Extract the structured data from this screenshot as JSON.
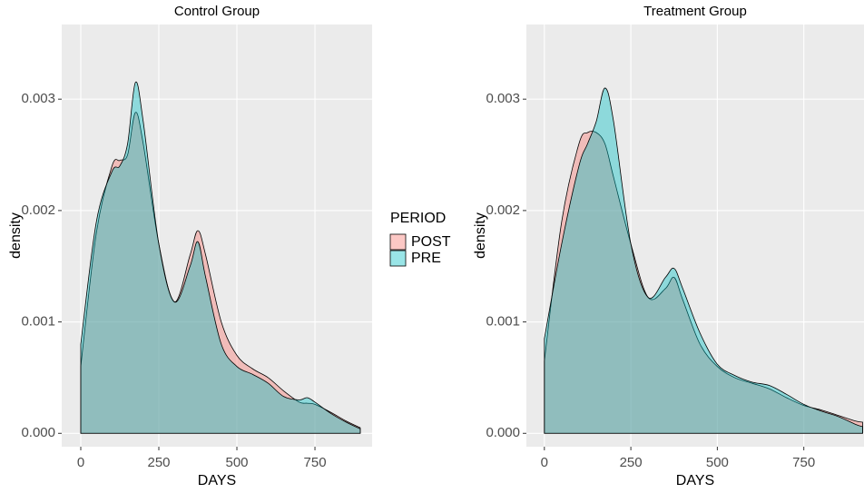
{
  "chart_data": [
    {
      "type": "density",
      "title": "Control Group",
      "x_label": "DAYS",
      "y_label": "density",
      "legend_title": "PERIOD",
      "legend_position": "right",
      "grid": true,
      "x": [
        0,
        50,
        100,
        125,
        150,
        175,
        200,
        250,
        300,
        350,
        375,
        400,
        450,
        500,
        550,
        600,
        650,
        700,
        725,
        750,
        800,
        850,
        895
      ],
      "series": [
        {
          "name": "POST",
          "color": "#F8766D",
          "values": [
            0.0006,
            0.0018,
            0.0024,
            0.00245,
            0.0025,
            0.00288,
            0.0026,
            0.0017,
            0.00118,
            0.0016,
            0.00182,
            0.0016,
            0.001,
            0.0007,
            0.00058,
            0.0005,
            0.00038,
            0.00028,
            0.00027,
            0.00026,
            0.00019,
            0.00011,
            5e-05
          ]
        },
        {
          "name": "PRE",
          "color": "#00BFC4",
          "values": [
            0.0008,
            0.0019,
            0.00235,
            0.0024,
            0.0026,
            0.00315,
            0.0028,
            0.0017,
            0.00118,
            0.0015,
            0.00172,
            0.0014,
            0.0008,
            0.0006,
            0.00053,
            0.00045,
            0.00033,
            0.0003,
            0.00032,
            0.00028,
            0.00018,
            0.0001,
            4e-05
          ]
        }
      ],
      "xlim": [
        -61,
        933
      ],
      "xticks": [
        0,
        250,
        500,
        750
      ],
      "ylim": [
        -0.00012,
        0.00367
      ],
      "yticks": [
        {
          "value": 0,
          "label": "0.000"
        },
        0.001,
        0.002,
        0.003
      ]
    },
    {
      "type": "density",
      "title": "Treatment Group",
      "x_label": "DAYS",
      "y_label": "density",
      "grid": true,
      "x": [
        0,
        50,
        100,
        125,
        150,
        175,
        200,
        250,
        300,
        350,
        375,
        400,
        450,
        500,
        550,
        600,
        650,
        700,
        750,
        800,
        850,
        900,
        920
      ],
      "series": [
        {
          "name": "POST",
          "color": "#F8766D",
          "values": [
            0.00065,
            0.0019,
            0.0026,
            0.0027,
            0.0027,
            0.0026,
            0.0023,
            0.0017,
            0.00122,
            0.0013,
            0.0014,
            0.0012,
            0.0008,
            0.0006,
            0.0005,
            0.00045,
            0.0004,
            0.00032,
            0.00025,
            0.00021,
            0.00016,
            0.00011,
            0.0001
          ]
        },
        {
          "name": "PRE",
          "color": "#00BFC4",
          "values": [
            0.00085,
            0.0017,
            0.0024,
            0.0026,
            0.0028,
            0.0031,
            0.0028,
            0.0017,
            0.00122,
            0.0014,
            0.00148,
            0.0013,
            0.0009,
            0.00062,
            0.00052,
            0.00046,
            0.00043,
            0.00035,
            0.00026,
            0.0002,
            0.00015,
            8e-05,
            6e-05
          ]
        }
      ],
      "xlim": [
        -52,
        924
      ],
      "xticks": [
        0,
        250,
        500,
        750
      ],
      "ylim": [
        -0.00012,
        0.00367
      ],
      "yticks": [
        {
          "value": 0,
          "label": "0.000"
        },
        0.001,
        0.002,
        0.003
      ]
    }
  ]
}
